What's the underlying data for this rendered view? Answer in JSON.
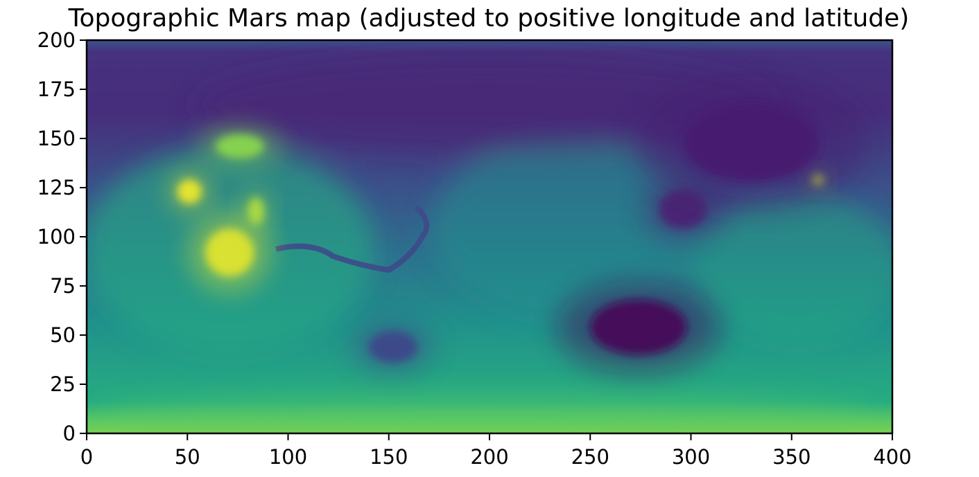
{
  "chart_data": {
    "type": "heatmap",
    "title": "Topographic Mars map (adjusted to positive longitude and latitude)",
    "xlabel": "",
    "ylabel": "",
    "xlim": [
      0,
      400
    ],
    "ylim": [
      0,
      200
    ],
    "xticks": [
      0,
      50,
      100,
      150,
      200,
      250,
      300,
      350,
      400
    ],
    "yticks": [
      0,
      25,
      50,
      75,
      100,
      125,
      150,
      175,
      200
    ],
    "colormap": "viridis",
    "grid": false,
    "features": [
      {
        "kind": "high",
        "x": 51,
        "y": 123,
        "rx": 6,
        "ry": 6,
        "level": 0.98
      },
      {
        "kind": "high",
        "x": 76,
        "y": 146,
        "rx": 12,
        "ry": 6,
        "level": 0.9
      },
      {
        "kind": "high",
        "x": 71,
        "y": 92,
        "rx": 12,
        "ry": 12,
        "level": 0.97
      },
      {
        "kind": "high",
        "x": 84,
        "y": 113,
        "rx": 4,
        "ry": 7,
        "level": 0.93
      },
      {
        "kind": "high",
        "x": 363,
        "y": 129,
        "rx": 3,
        "ry": 3,
        "level": 0.95
      },
      {
        "kind": "low",
        "x": 274,
        "y": 54,
        "rx": 24,
        "ry": 14,
        "level": 0.02
      },
      {
        "kind": "low",
        "x": 152,
        "y": 44,
        "rx": 12,
        "ry": 8,
        "level": 0.25
      },
      {
        "kind": "low",
        "x": 296,
        "y": 114,
        "rx": 12,
        "ry": 10,
        "level": 0.12
      },
      {
        "kind": "low",
        "x": 330,
        "y": 148,
        "rx": 34,
        "ry": 20,
        "level": 0.1
      }
    ]
  }
}
